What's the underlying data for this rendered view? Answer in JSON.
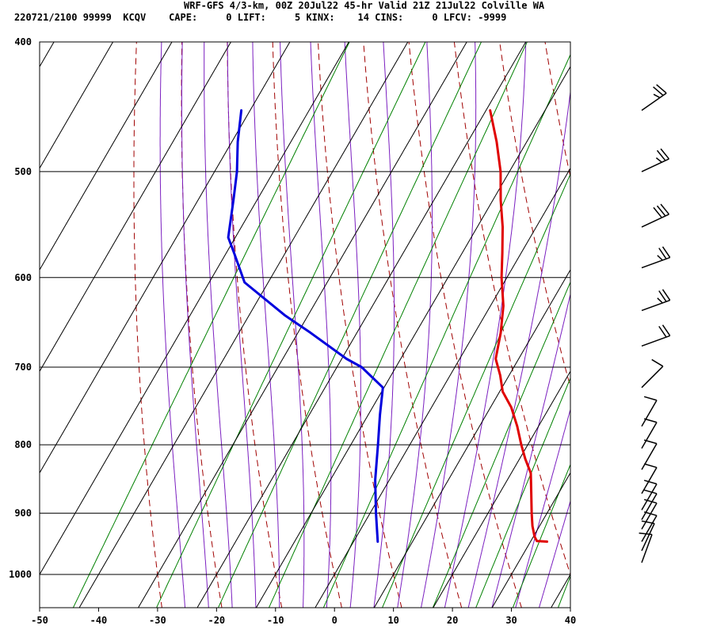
{
  "header": {
    "title": "WRF-GFS 4/3-km, 00Z 20Jul22 45-hr Valid 21Z 21Jul22 Colville WA",
    "stats": "220721/2100 99999  KCQV    CAPE:     0 LIFT:     5 KINX:    14 CINS:     0 LFCV: -9999"
  },
  "colors": {
    "temperature": "#e00000",
    "dewpoint": "#0000dd",
    "dry_adiabat": "#a00000",
    "moist_adiabat": "#7b1fc0",
    "mixing_ratio": "#008000",
    "grid": "#000000",
    "wind_barb": "#000000"
  },
  "chart_data": {
    "type": "line",
    "chart_kind": "skew-t log-p sounding",
    "xlabel": "",
    "ylabel": "",
    "xlim": [
      -50,
      40
    ],
    "ylim": [
      1040,
      400
    ],
    "y_scale": "log",
    "skewed_x": true,
    "grid": true,
    "x_ticks": [
      -50,
      -40,
      -30,
      -20,
      -10,
      0,
      10,
      20,
      30,
      40
    ],
    "y_ticks": [
      400,
      500,
      600,
      700,
      800,
      900,
      1000
    ],
    "series": [
      {
        "kind": "temperature",
        "values": [
          {
            "p": 945,
            "t": 32.8
          },
          {
            "p": 944,
            "t": 31.0
          },
          {
            "p": 937,
            "t": 30.2
          },
          {
            "p": 920,
            "t": 28.8
          },
          {
            "p": 900,
            "t": 27.4
          },
          {
            "p": 870,
            "t": 25.4
          },
          {
            "p": 840,
            "t": 23.3
          },
          {
            "p": 820,
            "t": 21.0
          },
          {
            "p": 800,
            "t": 18.9
          },
          {
            "p": 775,
            "t": 16.4
          },
          {
            "p": 750,
            "t": 13.5
          },
          {
            "p": 730,
            "t": 10.5
          },
          {
            "p": 710,
            "t": 8.5
          },
          {
            "p": 690,
            "t": 6.1
          },
          {
            "p": 660,
            "t": 4.4
          },
          {
            "p": 630,
            "t": 2.2
          },
          {
            "p": 600,
            "t": -0.9
          },
          {
            "p": 575,
            "t": -3.2
          },
          {
            "p": 550,
            "t": -5.7
          },
          {
            "p": 525,
            "t": -8.7
          },
          {
            "p": 500,
            "t": -11.5
          },
          {
            "p": 475,
            "t": -15.1
          },
          {
            "p": 450,
            "t": -19.3
          }
        ]
      },
      {
        "kind": "dewpoint",
        "values": [
          {
            "p": 945,
            "t": 4.1
          },
          {
            "p": 900,
            "t": 1.0
          },
          {
            "p": 850,
            "t": -2.4
          },
          {
            "p": 800,
            "t": -5.4
          },
          {
            "p": 760,
            "t": -8.0
          },
          {
            "p": 725,
            "t": -10.2
          },
          {
            "p": 700,
            "t": -15.8
          },
          {
            "p": 690,
            "t": -19.2
          },
          {
            "p": 660,
            "t": -27.8
          },
          {
            "p": 640,
            "t": -34.0
          },
          {
            "p": 605,
            "t": -44.0
          },
          {
            "p": 575,
            "t": -48.7
          },
          {
            "p": 560,
            "t": -51.2
          },
          {
            "p": 525,
            "t": -54.0
          },
          {
            "p": 500,
            "t": -56.2
          },
          {
            "p": 475,
            "t": -59.0
          },
          {
            "p": 450,
            "t": -61.5
          }
        ]
      }
    ],
    "wind_barbs": [
      {
        "p": 450,
        "dir": 235,
        "kt": 25
      },
      {
        "p": 500,
        "dir": 245,
        "kt": 25
      },
      {
        "p": 550,
        "dir": 245,
        "kt": 30
      },
      {
        "p": 590,
        "dir": 250,
        "kt": 25
      },
      {
        "p": 635,
        "dir": 250,
        "kt": 25
      },
      {
        "p": 675,
        "dir": 250,
        "kt": 20
      },
      {
        "p": 725,
        "dir": 225,
        "kt": 10
      },
      {
        "p": 775,
        "dir": 210,
        "kt": 10
      },
      {
        "p": 805,
        "dir": 210,
        "kt": 10
      },
      {
        "p": 835,
        "dir": 210,
        "kt": 10
      },
      {
        "p": 870,
        "dir": 210,
        "kt": 10
      },
      {
        "p": 895,
        "dir": 210,
        "kt": 10
      },
      {
        "p": 910,
        "dir": 210,
        "kt": 10
      },
      {
        "p": 925,
        "dir": 210,
        "kt": 10
      },
      {
        "p": 945,
        "dir": 210,
        "kt": 10
      },
      {
        "p": 960,
        "dir": 205,
        "kt": 10
      },
      {
        "p": 980,
        "dir": 200,
        "kt": 10
      }
    ]
  }
}
